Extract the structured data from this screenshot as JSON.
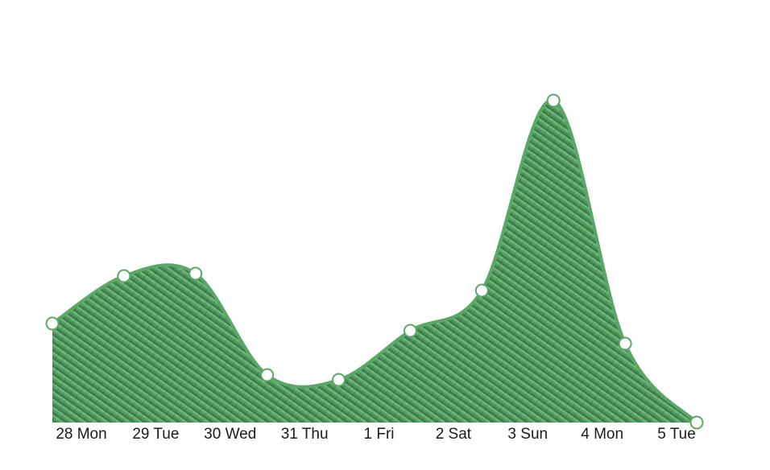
{
  "chart_data": {
    "type": "area",
    "categories": [
      "28 Mon",
      "29 Tue",
      "30 Wed",
      "31 Thu",
      "1 Fri",
      "2 Sat",
      "3 Sun",
      "4 Mon",
      "5 Tue",
      null
    ],
    "values": [
      123,
      182,
      185,
      59,
      53,
      114,
      164,
      400,
      98,
      0
    ],
    "color": "#5aa865",
    "ylim": [
      0,
      450
    ]
  }
}
